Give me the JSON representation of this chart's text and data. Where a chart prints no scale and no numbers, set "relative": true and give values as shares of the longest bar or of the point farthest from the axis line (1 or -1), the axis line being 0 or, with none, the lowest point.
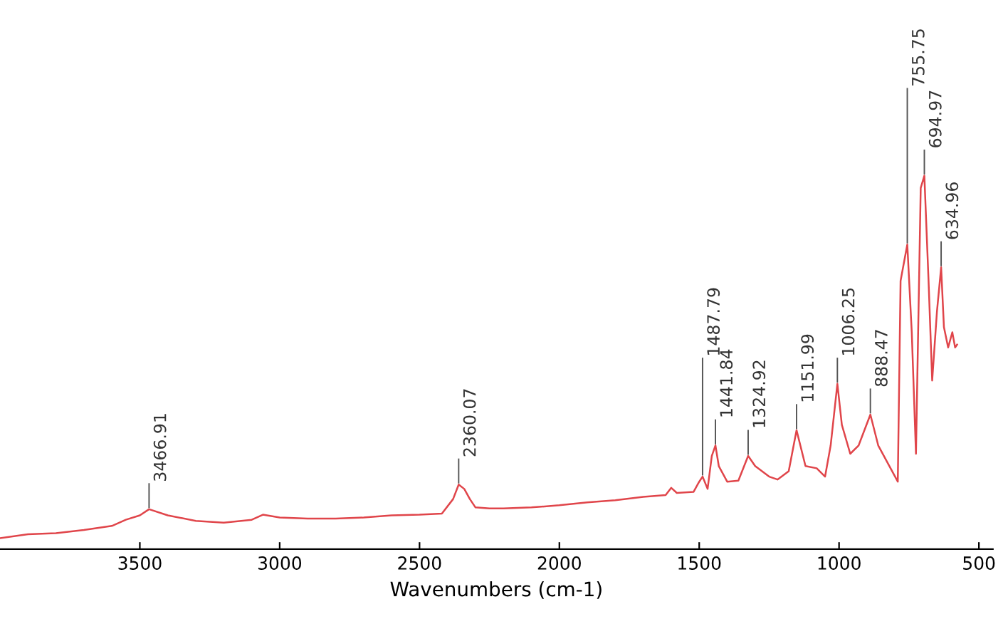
{
  "chart_data": {
    "type": "line",
    "xlabel": "Wavenumbers (cm-1)",
    "relative": true,
    "grid": false,
    "legend": false,
    "xlim": [
      4000,
      450
    ],
    "xticks": [
      3500,
      3000,
      2500,
      2000,
      1500,
      1000,
      500
    ],
    "x": [
      4000,
      3900,
      3800,
      3700,
      3600,
      3550,
      3500,
      3467,
      3400,
      3300,
      3200,
      3100,
      3060,
      3000,
      2900,
      2800,
      2700,
      2600,
      2500,
      2420,
      2380,
      2360,
      2340,
      2320,
      2300,
      2250,
      2200,
      2100,
      2000,
      1900,
      1800,
      1700,
      1620,
      1600,
      1580,
      1520,
      1500,
      1488,
      1470,
      1455,
      1442,
      1430,
      1400,
      1360,
      1325,
      1300,
      1250,
      1220,
      1180,
      1152,
      1120,
      1080,
      1050,
      1030,
      1006,
      990,
      960,
      930,
      888,
      860,
      820,
      790,
      780,
      756,
      740,
      725,
      708,
      695,
      680,
      667,
      650,
      635,
      625,
      610,
      595,
      585,
      578
    ],
    "series": [
      {
        "color": "#e0454a",
        "values": [
          0,
          0.011,
          0.014,
          0.023,
          0.034,
          0.051,
          0.063,
          0.08,
          0.063,
          0.048,
          0.043,
          0.051,
          0.065,
          0.057,
          0.054,
          0.054,
          0.057,
          0.063,
          0.065,
          0.068,
          0.108,
          0.148,
          0.136,
          0.108,
          0.085,
          0.082,
          0.082,
          0.085,
          0.091,
          0.099,
          0.105,
          0.114,
          0.119,
          0.139,
          0.125,
          0.128,
          0.156,
          0.17,
          0.136,
          0.227,
          0.256,
          0.199,
          0.156,
          0.159,
          0.227,
          0.199,
          0.17,
          0.162,
          0.185,
          0.298,
          0.199,
          0.193,
          0.17,
          0.256,
          0.426,
          0.313,
          0.233,
          0.256,
          0.341,
          0.256,
          0.199,
          0.156,
          0.71,
          0.81,
          0.568,
          0.233,
          0.966,
          1,
          0.71,
          0.435,
          0.625,
          0.747,
          0.582,
          0.526,
          0.568,
          0.526,
          0.534
        ]
      }
    ],
    "annotations": [
      {
        "text": "3466.91",
        "x": 3467,
        "y": 0.08
      },
      {
        "text": "2360.07",
        "x": 2360,
        "y": 0.148
      },
      {
        "text": "1487.79",
        "x": 1488,
        "y": 0.17
      },
      {
        "text": "1441.84",
        "x": 1442,
        "y": 0.256
      },
      {
        "text": "1324.92",
        "x": 1325,
        "y": 0.227
      },
      {
        "text": "1151.99",
        "x": 1152,
        "y": 0.298
      },
      {
        "text": "1006.25",
        "x": 1006,
        "y": 0.426
      },
      {
        "text": "888.47",
        "x": 888,
        "y": 0.341
      },
      {
        "text": "755.75",
        "x": 756,
        "y": 0.81
      },
      {
        "text": "694.97",
        "x": 695,
        "y": 1
      },
      {
        "text": "634.96",
        "x": 635,
        "y": 0.747
      }
    ]
  }
}
